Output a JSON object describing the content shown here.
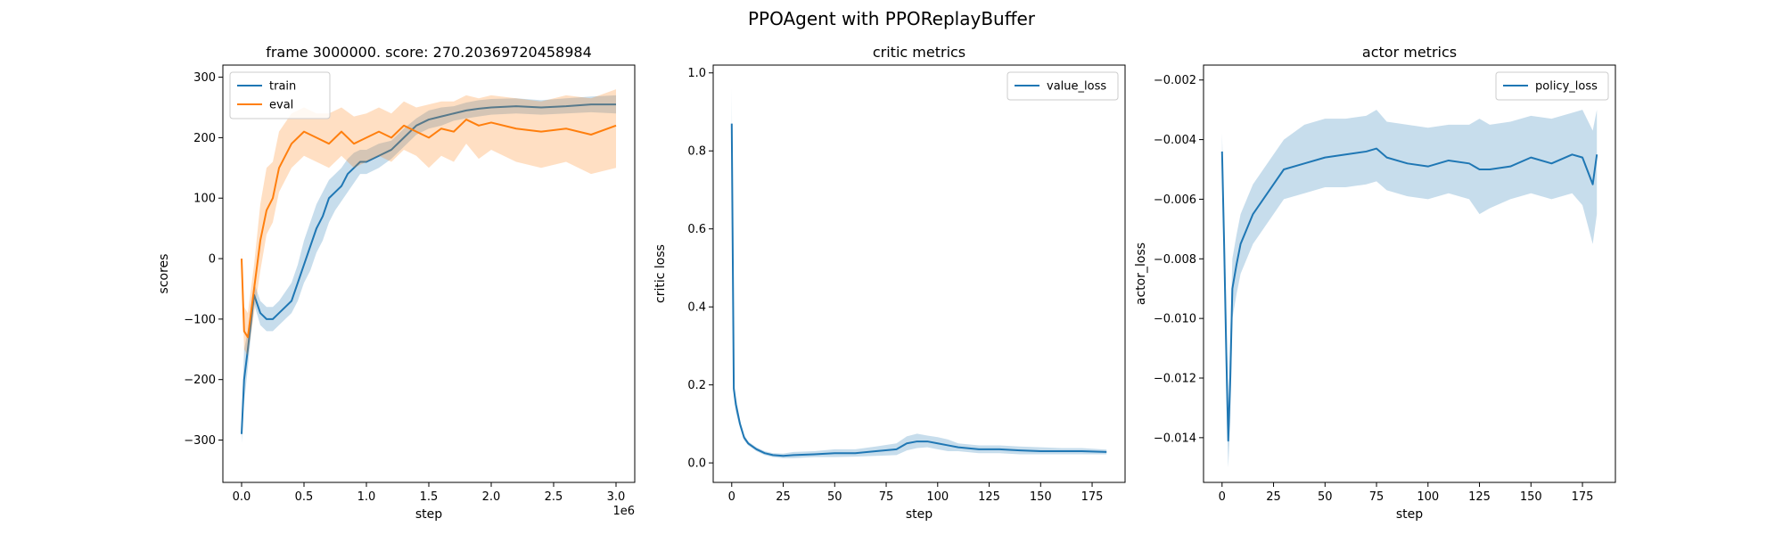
{
  "figure": {
    "suptitle": "PPOAgent with PPOReplayBuffer"
  },
  "colors": {
    "blue": "#1f77b4",
    "orange": "#ff7f0e"
  },
  "chart_data": [
    {
      "type": "line",
      "title": "frame 3000000. score: 270.20369720458984",
      "xlabel": "step",
      "ylabel": "scores",
      "xlim": [
        -0.15,
        3.15
      ],
      "ylim": [
        -370,
        320
      ],
      "x_offset_text": "1e6",
      "xticks": [
        0,
        0.5,
        1,
        1.5,
        2,
        2.5,
        3
      ],
      "xtick_labels": [
        "0.0",
        "0.5",
        "1.0",
        "1.5",
        "2.0",
        "2.5",
        "3.0"
      ],
      "yticks": [
        -300,
        -200,
        -100,
        0,
        100,
        200,
        300
      ],
      "ytick_labels": [
        "−300",
        "−200",
        "−100",
        "0",
        "100",
        "200",
        "300"
      ],
      "legend": {
        "position": "upper left"
      },
      "series": [
        {
          "name": "train",
          "color": "#1f77b4",
          "band_alpha": 0.25,
          "x": [
            0,
            0.02,
            0.05,
            0.1,
            0.15,
            0.2,
            0.25,
            0.3,
            0.35,
            0.4,
            0.45,
            0.5,
            0.55,
            0.6,
            0.65,
            0.7,
            0.75,
            0.8,
            0.85,
            0.9,
            0.95,
            1.0,
            1.1,
            1.2,
            1.3,
            1.4,
            1.5,
            1.6,
            1.7,
            1.8,
            1.9,
            2.0,
            2.2,
            2.4,
            2.6,
            2.8,
            3.0
          ],
          "y": [
            -290,
            -200,
            -150,
            -60,
            -90,
            -100,
            -100,
            -90,
            -80,
            -70,
            -40,
            -10,
            20,
            50,
            70,
            100,
            110,
            120,
            140,
            150,
            160,
            160,
            170,
            180,
            200,
            220,
            230,
            235,
            240,
            245,
            248,
            250,
            252,
            250,
            252,
            255,
            255
          ],
          "low": [
            -305,
            -240,
            -180,
            -75,
            -110,
            -120,
            -120,
            -110,
            -100,
            -90,
            -70,
            -40,
            -20,
            10,
            30,
            60,
            80,
            95,
            110,
            125,
            140,
            140,
            150,
            165,
            185,
            205,
            215,
            220,
            228,
            232,
            235,
            238,
            240,
            238,
            240,
            242,
            240
          ],
          "high": [
            -270,
            -150,
            -120,
            -40,
            -70,
            -80,
            -80,
            -70,
            -55,
            -40,
            -10,
            30,
            60,
            90,
            110,
            130,
            140,
            150,
            165,
            175,
            180,
            180,
            190,
            195,
            215,
            232,
            245,
            250,
            252,
            258,
            262,
            264,
            265,
            262,
            265,
            268,
            270
          ]
        },
        {
          "name": "eval",
          "color": "#ff7f0e",
          "band_alpha": 0.25,
          "x": [
            0,
            0.02,
            0.05,
            0.1,
            0.15,
            0.2,
            0.25,
            0.3,
            0.4,
            0.5,
            0.6,
            0.7,
            0.8,
            0.9,
            1.0,
            1.1,
            1.2,
            1.3,
            1.4,
            1.5,
            1.6,
            1.7,
            1.8,
            1.9,
            2.0,
            2.2,
            2.4,
            2.6,
            2.8,
            3.0
          ],
          "y": [
            0,
            -120,
            -130,
            -50,
            30,
            80,
            100,
            150,
            190,
            210,
            200,
            190,
            210,
            190,
            200,
            210,
            200,
            220,
            210,
            200,
            215,
            210,
            230,
            220,
            225,
            215,
            210,
            215,
            205,
            220
          ],
          "low": [
            -10,
            -150,
            -160,
            -90,
            -20,
            40,
            60,
            110,
            150,
            170,
            160,
            150,
            170,
            150,
            160,
            170,
            160,
            180,
            170,
            150,
            170,
            160,
            190,
            165,
            180,
            160,
            150,
            160,
            140,
            150
          ],
          "high": [
            10,
            -80,
            -90,
            -10,
            90,
            150,
            160,
            210,
            240,
            250,
            240,
            240,
            250,
            235,
            240,
            250,
            240,
            260,
            250,
            255,
            260,
            260,
            270,
            265,
            270,
            265,
            260,
            270,
            265,
            280
          ]
        }
      ]
    },
    {
      "type": "line",
      "title": "critic metrics",
      "xlabel": "step",
      "ylabel": "critic loss",
      "xlim": [
        -9,
        191
      ],
      "ylim": [
        -0.05,
        1.02
      ],
      "xticks": [
        0,
        25,
        50,
        75,
        100,
        125,
        150,
        175
      ],
      "xtick_labels": [
        "0",
        "25",
        "50",
        "75",
        "100",
        "125",
        "150",
        "175"
      ],
      "yticks": [
        0,
        0.2,
        0.4,
        0.6,
        0.8,
        1.0
      ],
      "ytick_labels": [
        "0.0",
        "0.2",
        "0.4",
        "0.6",
        "0.8",
        "1.0"
      ],
      "legend": {
        "position": "upper right"
      },
      "series": [
        {
          "name": "value_loss",
          "color": "#1f77b4",
          "band_alpha": 0.25,
          "x": [
            0,
            1,
            2,
            4,
            6,
            8,
            12,
            16,
            20,
            25,
            30,
            40,
            50,
            60,
            70,
            80,
            85,
            90,
            95,
            100,
            105,
            110,
            120,
            130,
            140,
            150,
            160,
            170,
            182
          ],
          "y": [
            0.87,
            0.19,
            0.15,
            0.1,
            0.065,
            0.05,
            0.035,
            0.025,
            0.02,
            0.018,
            0.02,
            0.022,
            0.025,
            0.025,
            0.03,
            0.035,
            0.05,
            0.055,
            0.055,
            0.05,
            0.045,
            0.04,
            0.035,
            0.035,
            0.032,
            0.03,
            0.03,
            0.03,
            0.028
          ],
          "low": [
            0.78,
            0.17,
            0.13,
            0.09,
            0.058,
            0.045,
            0.03,
            0.02,
            0.015,
            0.012,
            0.012,
            0.015,
            0.015,
            0.016,
            0.018,
            0.02,
            0.032,
            0.038,
            0.04,
            0.035,
            0.03,
            0.03,
            0.025,
            0.025,
            0.022,
            0.022,
            0.022,
            0.022,
            0.022
          ],
          "high": [
            0.96,
            0.21,
            0.17,
            0.11,
            0.072,
            0.055,
            0.04,
            0.03,
            0.025,
            0.024,
            0.028,
            0.03,
            0.035,
            0.035,
            0.042,
            0.05,
            0.068,
            0.075,
            0.07,
            0.066,
            0.06,
            0.05,
            0.045,
            0.045,
            0.042,
            0.04,
            0.038,
            0.038,
            0.034
          ]
        }
      ]
    },
    {
      "type": "line",
      "title": "actor metrics",
      "xlabel": "step",
      "ylabel": "actor_loss",
      "xlim": [
        -9,
        191
      ],
      "ylim": [
        -0.0155,
        -0.0015
      ],
      "xticks": [
        0,
        25,
        50,
        75,
        100,
        125,
        150,
        175
      ],
      "xtick_labels": [
        "0",
        "25",
        "50",
        "75",
        "100",
        "125",
        "150",
        "175"
      ],
      "yticks": [
        -0.014,
        -0.012,
        -0.01,
        -0.008,
        -0.006,
        -0.004,
        -0.002
      ],
      "ytick_labels": [
        "−0.014",
        "−0.012",
        "−0.010",
        "−0.008",
        "−0.006",
        "−0.004",
        "−0.002"
      ],
      "legend": {
        "position": "upper right"
      },
      "series": [
        {
          "name": "policy_loss",
          "color": "#1f77b4",
          "band_alpha": 0.25,
          "x": [
            0,
            1,
            2,
            3,
            4,
            5,
            7,
            9,
            12,
            15,
            20,
            25,
            30,
            40,
            50,
            60,
            70,
            75,
            80,
            90,
            100,
            110,
            120,
            125,
            130,
            140,
            150,
            160,
            170,
            175,
            180,
            182
          ],
          "y": [
            -0.0044,
            -0.0075,
            -0.011,
            -0.0141,
            -0.012,
            -0.009,
            -0.0082,
            -0.0075,
            -0.007,
            -0.0065,
            -0.006,
            -0.0055,
            -0.005,
            -0.0048,
            -0.0046,
            -0.0045,
            -0.0044,
            -0.0043,
            -0.0046,
            -0.0048,
            -0.0049,
            -0.0047,
            -0.0048,
            -0.005,
            -0.005,
            -0.0049,
            -0.0046,
            -0.0048,
            -0.0045,
            -0.0046,
            -0.0055,
            -0.0045
          ],
          "low": [
            -0.005,
            -0.0085,
            -0.0125,
            -0.015,
            -0.0135,
            -0.01,
            -0.0092,
            -0.0085,
            -0.008,
            -0.0075,
            -0.007,
            -0.0065,
            -0.006,
            -0.0058,
            -0.0056,
            -0.0056,
            -0.0055,
            -0.0054,
            -0.0057,
            -0.0059,
            -0.006,
            -0.0058,
            -0.006,
            -0.0065,
            -0.0063,
            -0.006,
            -0.0058,
            -0.006,
            -0.0058,
            -0.0062,
            -0.0075,
            -0.0065
          ],
          "high": [
            -0.0038,
            -0.0065,
            -0.0095,
            -0.013,
            -0.0105,
            -0.008,
            -0.0072,
            -0.0065,
            -0.006,
            -0.0055,
            -0.005,
            -0.0045,
            -0.004,
            -0.0035,
            -0.0033,
            -0.0033,
            -0.0032,
            -0.003,
            -0.0034,
            -0.0035,
            -0.0036,
            -0.0035,
            -0.0035,
            -0.0033,
            -0.0035,
            -0.0034,
            -0.0032,
            -0.0033,
            -0.0031,
            -0.003,
            -0.0037,
            -0.003
          ]
        }
      ]
    }
  ]
}
